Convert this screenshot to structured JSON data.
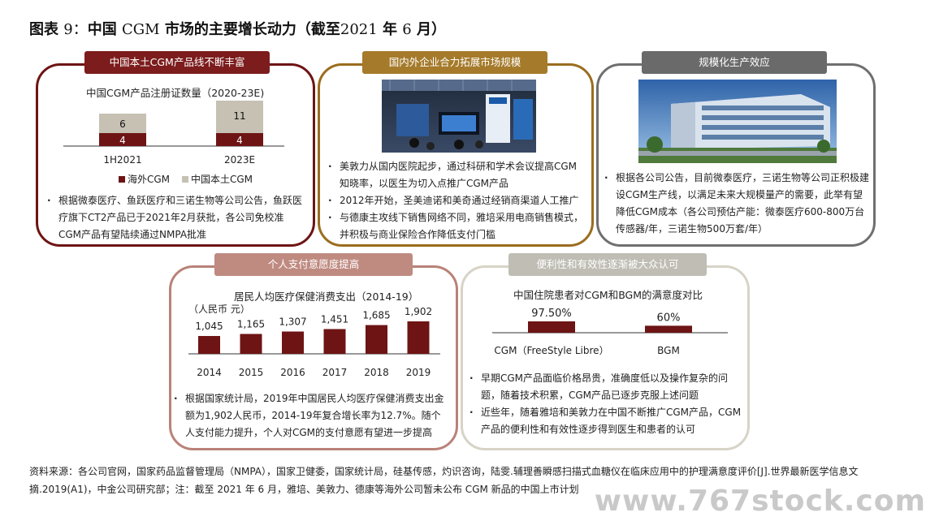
{
  "title": {
    "prefix": "图表",
    "num": "9：",
    "main": "中国",
    "cgm": "CGM",
    "main2": "市场的主要增长动力（截至",
    "year": "2021",
    "nian": "年",
    "month": "6",
    "yue": "月）"
  },
  "card1": {
    "tag": "中国本土CGM产品线不断丰富",
    "chart_title": "中国CGM产品注册证数量（2020-23E)",
    "bullet": "根据微泰医疗、鱼跃医疗和三诺生物等公司公告，鱼跃医疗旗下CT2产品已于2021年2月获批，各公司免校准CGM产品有望陆续通过NMPA批准"
  },
  "card2": {
    "tag": "国内外企业合力拓展市场规模",
    "bullets": [
      "美敦力从国内医院起步，通过科研和学术会议提高CGM知晓率，以医生为切入点推广CGM产品",
      "2012年开始，圣美迪诺和美奇通过经销商渠道人工推广",
      "与德康主攻线下销售网络不同，雅培采用电商销售模式，并积极与商业保险合作降低支付门槛"
    ]
  },
  "card3": {
    "tag": "规模化生产效应",
    "bullet": "根据各公司公告，目前微泰医疗，三诺生物等公司正积极建设CGM生产线，以满足未来大规模量产的需要，此举有望降低CGM成本（各公司预估产能：微泰医疗600-800万台传感器/年，三诺生物500万套/年）"
  },
  "card4": {
    "tag": "个人支付意愿度提高",
    "chart_title": "居民人均医疗保健消费支出（2014-19）",
    "unit": "（人民币 元）",
    "bullet": "根据国家统计局，2019年中国居民人均医疗保健消费支出金额为1,902人民币，2014-19年复合增长率为12.7%。随个人支付能力提升，个人对CGM的支付意愿有望进一步提高"
  },
  "card5": {
    "tag": "便利性和有效性逐渐被大众认可",
    "chart_title": "中国住院患者对CGM和BGM的满意度对比",
    "bullets": [
      "早期CGM产品面临价格昂贵，准确度低以及操作复杂的问题，随着技术积累，CGM产品已逐步克服上述问题",
      "近些年，随着雅培和美敦力在中国不断推广CGM产品，CGM产品的便利性和有效性逐步得到医生和患者的认可"
    ]
  },
  "source": "资料来源：各公司官网，国家药品监督管理局（NMPA），国家卫健委，国家统计局，硅基传感，灼识咨询，陆雯.辅理善瞬感扫描式血糖仪在临床应用中的护理满意度评价[J].世界最新医学信息文摘.2019(A1)，中金公司研究部；注：截至 2021 年 6 月，雅培、美敦力、德康等海外公司暂未公布 CGM 新品的中国上市计划",
  "watermark": "www.767stock.com",
  "colors": {
    "dark_red": "#6e1414",
    "beige": "#c6c1b3"
  },
  "chart_data": [
    {
      "type": "bar",
      "title": "中国CGM产品注册证数量（2020-23E)",
      "categories": [
        "1H2021",
        "2023E"
      ],
      "series": [
        {
          "name": "海外CGM",
          "values": [
            4,
            4
          ]
        },
        {
          "name": "中国本土CGM",
          "values": [
            6,
            11
          ]
        }
      ],
      "stacked": true,
      "legend": "bottom"
    },
    {
      "type": "bar",
      "title": "居民人均医疗保健消费支出（2014-19）",
      "ylabel": "（人民币 元）",
      "categories": [
        "2014",
        "2015",
        "2016",
        "2017",
        "2018",
        "2019"
      ],
      "values": [
        1045,
        1165,
        1307,
        1451,
        1685,
        1902
      ],
      "value_labels": [
        "1,045",
        "1,165",
        "1,307",
        "1,451",
        "1,685",
        "1,902"
      ]
    },
    {
      "type": "bar",
      "title": "中国住院患者对CGM和BGM的满意度对比",
      "categories": [
        "CGM（FreeStyle Libre）",
        "BGM"
      ],
      "values": [
        97.5,
        60
      ],
      "value_labels": [
        "97.50%",
        "60%"
      ]
    }
  ]
}
